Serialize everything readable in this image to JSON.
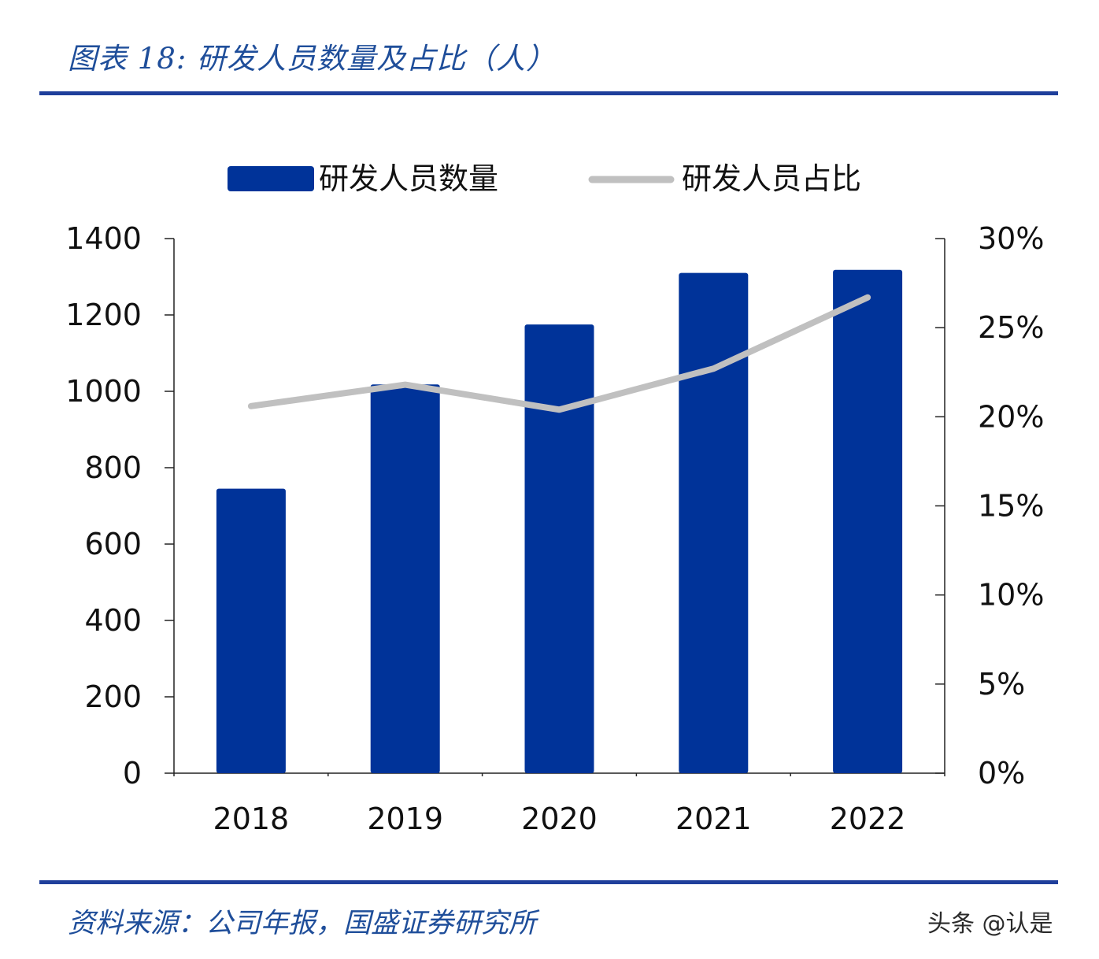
{
  "header": {
    "figure_title": "图表 18:  研发人员数量及占比（人）"
  },
  "footer": {
    "source": "资料来源：公司年报，国盛证券研究所",
    "watermark": "头条 @认是"
  },
  "colors": {
    "bar": "#003399",
    "line": "#c0c0c0",
    "rule": "#1f3f9b",
    "title": "#1f4e9a"
  },
  "chart_data": {
    "type": "bar",
    "categories": [
      "2018",
      "2019",
      "2020",
      "2021",
      "2022"
    ],
    "series": [
      {
        "name": "研发人员数量",
        "type": "bar",
        "axis": "left",
        "values": [
          745,
          1018,
          1175,
          1310,
          1318
        ]
      },
      {
        "name": "研发人员占比",
        "type": "line",
        "axis": "right",
        "values": [
          20.6,
          21.8,
          20.4,
          22.7,
          26.7
        ]
      }
    ],
    "y_left": {
      "ylim": [
        0,
        1400
      ],
      "ticks": [
        0,
        200,
        400,
        600,
        800,
        1000,
        1200,
        1400
      ],
      "tick_labels": [
        "0",
        "200",
        "400",
        "600",
        "800",
        "1000",
        "1200",
        "1400"
      ]
    },
    "y_right": {
      "ylim": [
        0,
        30
      ],
      "ticks": [
        0,
        5,
        10,
        15,
        20,
        25,
        30
      ],
      "tick_labels": [
        "0%",
        "5%",
        "10%",
        "15%",
        "20%",
        "25%",
        "30%"
      ]
    },
    "legend": {
      "position": "top",
      "entries": [
        "研发人员数量",
        "研发人员占比"
      ]
    },
    "grid": false
  }
}
